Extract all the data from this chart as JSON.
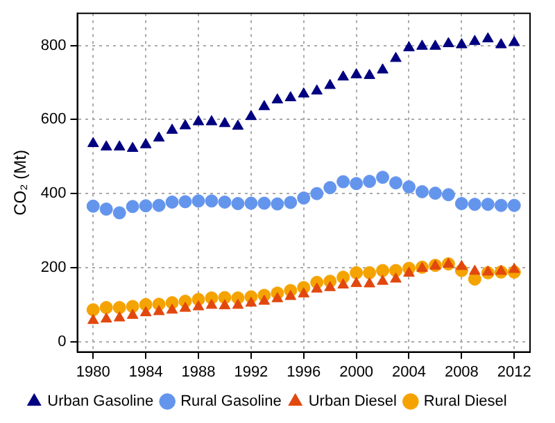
{
  "chart_data": {
    "type": "scatter",
    "ylabel": "CO₂ (Mt)",
    "x": [
      1980,
      1981,
      1982,
      1983,
      1984,
      1985,
      1986,
      1987,
      1988,
      1989,
      1990,
      1991,
      1992,
      1993,
      1994,
      1995,
      1996,
      1997,
      1998,
      1999,
      2000,
      2001,
      2002,
      2003,
      2004,
      2005,
      2006,
      2007,
      2008,
      2009,
      2010,
      2011,
      2012
    ],
    "series": [
      {
        "name": "Urban Gasoline",
        "color": "#000080",
        "marker": "triangle",
        "values": [
          535,
          526,
          526,
          522,
          532,
          550,
          571,
          583,
          594,
          594,
          589,
          582,
          608,
          635,
          653,
          659,
          669,
          677,
          692,
          715,
          721,
          719,
          734,
          765,
          794,
          798,
          798,
          805,
          802,
          811,
          818,
          802,
          808
        ]
      },
      {
        "name": "Rural Gasoline",
        "color": "#6495ed",
        "marker": "circle",
        "values": [
          366,
          358,
          348,
          365,
          367,
          368,
          377,
          378,
          380,
          380,
          377,
          373,
          374,
          374,
          372,
          376,
          388,
          400,
          416,
          432,
          427,
          433,
          444,
          429,
          418,
          405,
          401,
          397,
          373,
          371,
          371,
          368,
          368
        ]
      },
      {
        "name": "Urban Diesel",
        "color": "#e2480e",
        "marker": "triangle",
        "values": [
          57,
          61,
          64,
          71,
          78,
          81,
          85,
          90,
          94,
          98,
          97,
          98,
          104,
          109,
          116,
          122,
          129,
          142,
          146,
          153,
          157,
          156,
          163,
          169,
          185,
          198,
          204,
          209,
          203,
          190,
          188,
          190,
          195
        ]
      },
      {
        "name": "Rural Diesel",
        "color": "#f5a300",
        "marker": "circle",
        "values": [
          86,
          92,
          92,
          95,
          100,
          101,
          105,
          109,
          114,
          118,
          119,
          118,
          121,
          125,
          131,
          138,
          146,
          160,
          163,
          174,
          186,
          186,
          192,
          192,
          198,
          201,
          206,
          210,
          192,
          169,
          186,
          188,
          188
        ]
      }
    ],
    "xlim": [
      1978.8,
      2013.2
    ],
    "xticks": [
      1980,
      1984,
      1988,
      1992,
      1996,
      2000,
      2004,
      2008,
      2012
    ],
    "ylim": [
      -28,
      887
    ],
    "yticks": [
      0,
      200,
      400,
      600,
      800
    ],
    "grid": true,
    "legend": "bottom"
  }
}
